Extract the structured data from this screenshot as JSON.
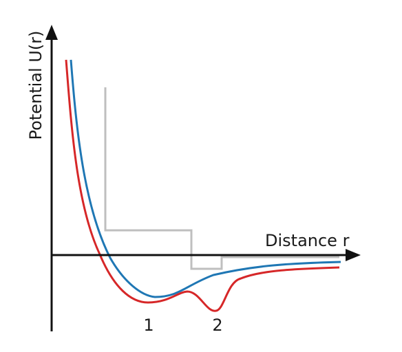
{
  "axes": {
    "y_label": "Potential U(r)",
    "x_label": "Distance r"
  },
  "well_labels": [
    "1",
    "2"
  ],
  "curves": [
    {
      "id": "blue-curve",
      "color": "#1f77b4"
    },
    {
      "id": "red-curve",
      "color": "#d62728"
    },
    {
      "id": "gray-step",
      "color": "#bfbfbf"
    }
  ],
  "colors": {
    "axis": "#111111"
  }
}
